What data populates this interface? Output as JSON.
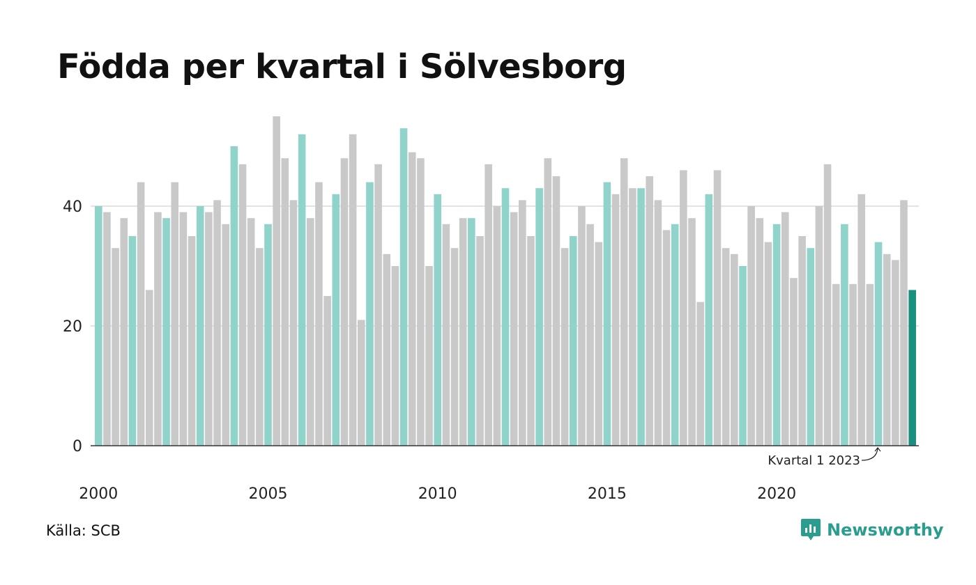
{
  "title": "Födda per kvartal i Sölvesborg",
  "source": "Källa: SCB",
  "brand": "Newsworthy",
  "colors": {
    "q1": "#8fd3cb",
    "other": "#c9c9c9",
    "latest": "#17907f",
    "grid": "#e3e3e3",
    "axis": "#333333",
    "brand": "#2a9d8f"
  },
  "chart_data": {
    "type": "bar",
    "title": "Födda per kvartal i Sölvesborg",
    "xlabel": "",
    "ylabel": "",
    "ylim": [
      0,
      57
    ],
    "yticks": [
      0,
      20,
      40
    ],
    "grid": true,
    "start_year": 2000,
    "quarters_per_year": 4,
    "xtick_labels": [
      "2000",
      "2005",
      "2010",
      "2015",
      "2020"
    ],
    "highlight": "Q1 bars in teal, latest bar in dark teal",
    "annotation": "Kvartal 1 2023",
    "values": [
      40,
      39,
      33,
      38,
      35,
      44,
      26,
      39,
      38,
      44,
      39,
      35,
      40,
      39,
      41,
      37,
      50,
      47,
      38,
      33,
      37,
      55,
      48,
      41,
      52,
      38,
      44,
      25,
      42,
      48,
      52,
      21,
      44,
      47,
      32,
      30,
      53,
      49,
      48,
      30,
      42,
      37,
      33,
      38,
      38,
      35,
      47,
      40,
      43,
      39,
      41,
      35,
      43,
      48,
      45,
      33,
      35,
      40,
      37,
      34,
      44,
      42,
      48,
      43,
      43,
      45,
      41,
      36,
      37,
      46,
      38,
      24,
      42,
      46,
      33,
      32,
      30,
      40,
      38,
      34,
      37,
      39,
      28,
      35,
      33,
      40,
      47,
      27,
      37,
      27,
      42,
      27,
      34,
      32,
      31,
      41,
      26
    ]
  }
}
